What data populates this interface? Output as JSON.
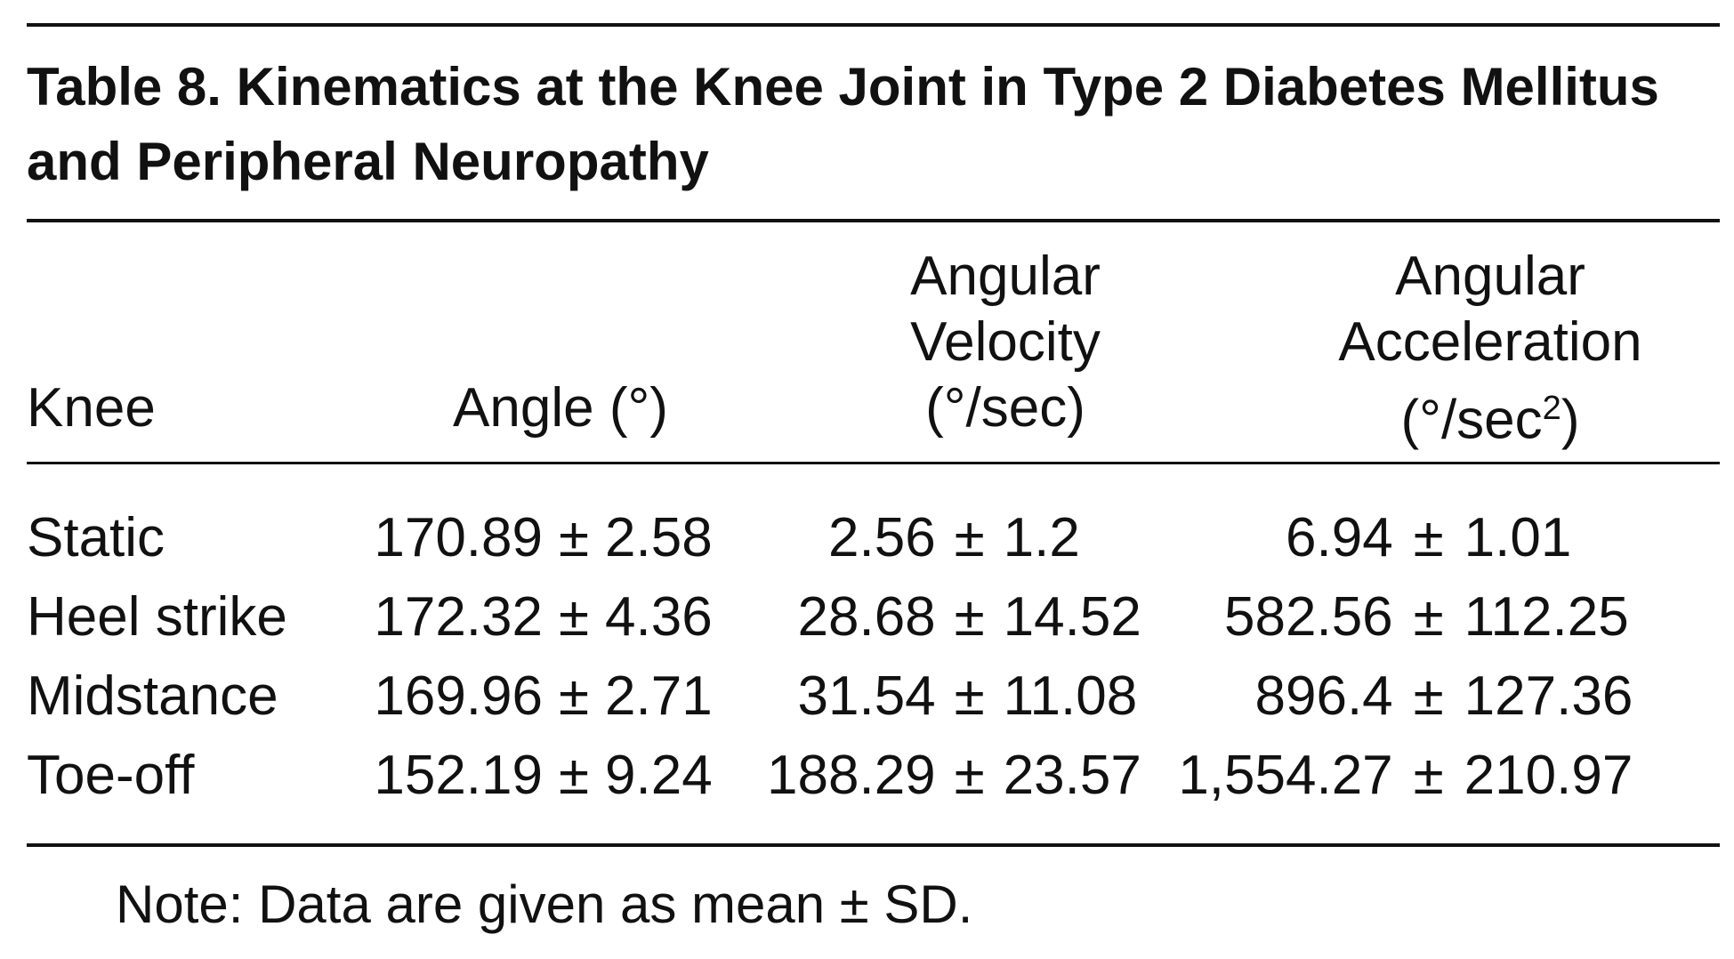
{
  "table": {
    "title": "Table 8. Kinematics at the Knee Joint in Type 2 Diabetes Mellitus and Peripheral Neuropathy",
    "headers": {
      "knee": "Knee",
      "angle": "Angle (°)",
      "velocity_line1": "Angular",
      "velocity_line2": "Velocity",
      "velocity_line3": "(°/sec)",
      "acceleration_line1": "Angular",
      "acceleration_line2": "Acceleration",
      "acceleration_line3_pre": "(°/sec",
      "acceleration_line3_sup": "2",
      "acceleration_line3_post": ")"
    },
    "pm_symbol": "±",
    "rows": [
      {
        "phase": "Static",
        "angle_mean": "170.89",
        "angle_sd": "2.58",
        "velocity_mean": "2.56",
        "velocity_sd": "1.2",
        "acceleration_mean": "6.94",
        "acceleration_sd": "1.01"
      },
      {
        "phase": "Heel strike",
        "angle_mean": "172.32",
        "angle_sd": "4.36",
        "velocity_mean": "28.68",
        "velocity_sd": "14.52",
        "acceleration_mean": "582.56",
        "acceleration_sd": "112.25"
      },
      {
        "phase": "Midstance",
        "angle_mean": "169.96",
        "angle_sd": "2.71",
        "velocity_mean": "31.54",
        "velocity_sd": "11.08",
        "acceleration_mean": "896.4",
        "acceleration_sd": "127.36"
      },
      {
        "phase": "Toe-off",
        "angle_mean": "152.19",
        "angle_sd": "9.24",
        "velocity_mean": "188.29",
        "velocity_sd": "23.57",
        "acceleration_mean": "1,554.27",
        "acceleration_sd": "210.97"
      }
    ],
    "note": "Note: Data are given as mean ± SD."
  }
}
